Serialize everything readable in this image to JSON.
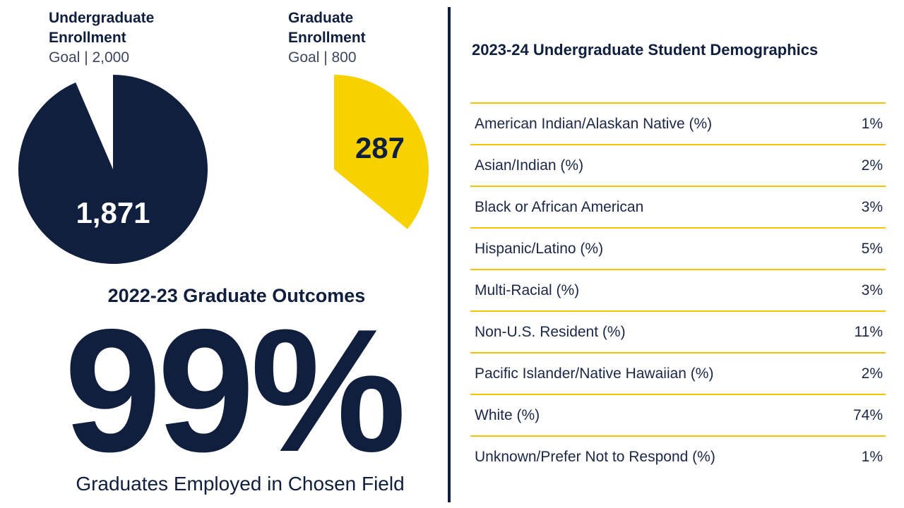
{
  "enrollment": {
    "undergrad": {
      "title_line1": "Undergraduate",
      "title_line2": "Enrollment",
      "goal": "Goal | 2,000"
    },
    "graduate": {
      "title_line1": "Graduate",
      "title_line2": "Enrollment",
      "goal": "Goal | 800"
    }
  },
  "outcomes": {
    "title": "2022-23 Graduate Outcomes",
    "big_value": "99%",
    "caption": "Graduates Employed in Chosen Field"
  },
  "demographics": {
    "title": "2023-24 Undergraduate Student Demographics",
    "rows": [
      {
        "label": "American Indian/Alaskan Native (%)",
        "value": "1%"
      },
      {
        "label": "Asian/Indian (%)",
        "value": "2%"
      },
      {
        "label": "Black or African American",
        "value": "3%"
      },
      {
        "label": "Hispanic/Latino (%)",
        "value": "5%"
      },
      {
        "label": "Multi-Racial (%)",
        "value": "3%"
      },
      {
        "label": "Non-U.S. Resident (%)",
        "value": "11%"
      },
      {
        "label": "Pacific Islander/Native Hawaiian (%)",
        "value": "2%"
      },
      {
        "label": "White (%)",
        "value": "74%"
      },
      {
        "label": "Unknown/Prefer Not to Respond (%)",
        "value": "1%"
      }
    ]
  },
  "colors": {
    "navy": "#0f1f3d",
    "gold": "#f8d100",
    "rule": "#f2c500"
  },
  "chart_data": [
    {
      "type": "pie",
      "title": "Undergraduate Enrollment",
      "subtitle": "Goal | 2,000",
      "value": 1871,
      "goal": 2000,
      "label": "1,871",
      "color": "#0f1f3d"
    },
    {
      "type": "pie",
      "title": "Graduate Enrollment",
      "subtitle": "Goal | 800",
      "value": 287,
      "goal": 800,
      "label": "287",
      "color": "#f8d100"
    }
  ]
}
